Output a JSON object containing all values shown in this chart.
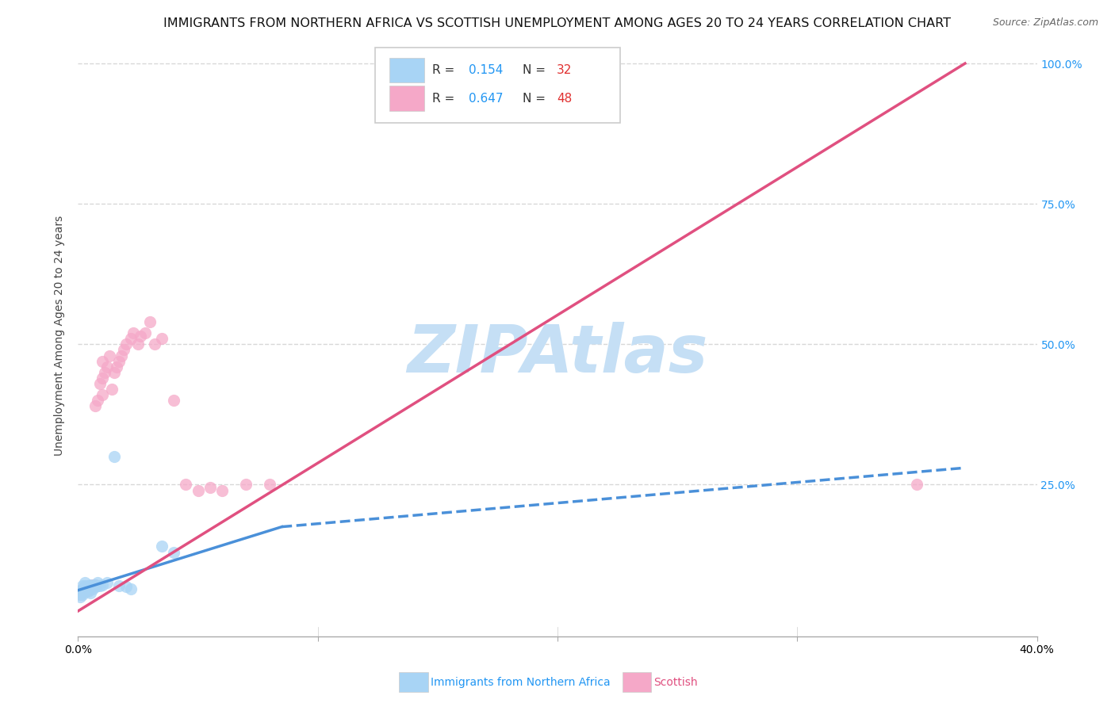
{
  "title": "IMMIGRANTS FROM NORTHERN AFRICA VS SCOTTISH UNEMPLOYMENT AMONG AGES 20 TO 24 YEARS CORRELATION CHART",
  "source": "Source: ZipAtlas.com",
  "ylabel": "Unemployment Among Ages 20 to 24 years",
  "xlabel_blue": "Immigrants from Northern Africa",
  "xlabel_pink": "Scottish",
  "legend_blue_R": "0.154",
  "legend_blue_N": "32",
  "legend_pink_R": "0.647",
  "legend_pink_N": "48",
  "watermark": "ZIPAtlas",
  "xlim": [
    0.0,
    0.4
  ],
  "ylim": [
    -0.02,
    1.05
  ],
  "xticks": [
    0.0,
    0.1,
    0.2,
    0.3,
    0.4
  ],
  "xticklabels": [
    "0.0%",
    "",
    "",
    "",
    "40.0%"
  ],
  "ytick_positions": [
    0.0,
    0.25,
    0.5,
    0.75,
    1.0
  ],
  "yticklabels_right": [
    "",
    "25.0%",
    "50.0%",
    "75.0%",
    "100.0%"
  ],
  "blue_color": "#a8d4f5",
  "blue_line_color": "#4a90d9",
  "pink_color": "#f5a8c8",
  "pink_line_color": "#e05080",
  "blue_scatter": [
    [
      0.001,
      0.05
    ],
    [
      0.001,
      0.055
    ],
    [
      0.001,
      0.06
    ],
    [
      0.002,
      0.06
    ],
    [
      0.002,
      0.065
    ],
    [
      0.002,
      0.07
    ],
    [
      0.002,
      0.055
    ],
    [
      0.003,
      0.065
    ],
    [
      0.003,
      0.06
    ],
    [
      0.003,
      0.07
    ],
    [
      0.003,
      0.075
    ],
    [
      0.004,
      0.065
    ],
    [
      0.004,
      0.06
    ],
    [
      0.004,
      0.07
    ],
    [
      0.005,
      0.068
    ],
    [
      0.005,
      0.072
    ],
    [
      0.005,
      0.058
    ],
    [
      0.006,
      0.065
    ],
    [
      0.006,
      0.07
    ],
    [
      0.007,
      0.068
    ],
    [
      0.007,
      0.072
    ],
    [
      0.008,
      0.07
    ],
    [
      0.008,
      0.075
    ],
    [
      0.009,
      0.07
    ],
    [
      0.01,
      0.072
    ],
    [
      0.012,
      0.075
    ],
    [
      0.015,
      0.3
    ],
    [
      0.017,
      0.07
    ],
    [
      0.02,
      0.068
    ],
    [
      0.022,
      0.065
    ],
    [
      0.035,
      0.14
    ],
    [
      0.04,
      0.13
    ]
  ],
  "pink_scatter": [
    [
      0.001,
      0.055
    ],
    [
      0.001,
      0.06
    ],
    [
      0.002,
      0.058
    ],
    [
      0.002,
      0.062
    ],
    [
      0.002,
      0.065
    ],
    [
      0.003,
      0.06
    ],
    [
      0.003,
      0.065
    ],
    [
      0.003,
      0.068
    ],
    [
      0.004,
      0.062
    ],
    [
      0.004,
      0.068
    ],
    [
      0.005,
      0.065
    ],
    [
      0.005,
      0.07
    ],
    [
      0.006,
      0.068
    ],
    [
      0.006,
      0.072
    ],
    [
      0.007,
      0.07
    ],
    [
      0.007,
      0.072
    ],
    [
      0.007,
      0.39
    ],
    [
      0.008,
      0.4
    ],
    [
      0.009,
      0.43
    ],
    [
      0.01,
      0.41
    ],
    [
      0.01,
      0.44
    ],
    [
      0.01,
      0.47
    ],
    [
      0.011,
      0.45
    ],
    [
      0.012,
      0.46
    ],
    [
      0.013,
      0.48
    ],
    [
      0.014,
      0.42
    ],
    [
      0.015,
      0.45
    ],
    [
      0.016,
      0.46
    ],
    [
      0.017,
      0.47
    ],
    [
      0.018,
      0.48
    ],
    [
      0.019,
      0.49
    ],
    [
      0.02,
      0.5
    ],
    [
      0.022,
      0.51
    ],
    [
      0.023,
      0.52
    ],
    [
      0.025,
      0.5
    ],
    [
      0.026,
      0.515
    ],
    [
      0.028,
      0.52
    ],
    [
      0.03,
      0.54
    ],
    [
      0.032,
      0.5
    ],
    [
      0.035,
      0.51
    ],
    [
      0.04,
      0.4
    ],
    [
      0.045,
      0.25
    ],
    [
      0.05,
      0.24
    ],
    [
      0.055,
      0.245
    ],
    [
      0.06,
      0.24
    ],
    [
      0.07,
      0.25
    ],
    [
      0.08,
      0.25
    ],
    [
      0.35,
      0.25
    ]
  ],
  "blue_trendline_solid": [
    [
      0.0,
      0.062
    ],
    [
      0.085,
      0.175
    ]
  ],
  "blue_trendline_dashed": [
    [
      0.085,
      0.175
    ],
    [
      0.37,
      0.28
    ]
  ],
  "pink_trendline": [
    [
      0.0,
      0.025
    ],
    [
      0.37,
      1.0
    ]
  ],
  "grid_color": "#d8d8d8",
  "title_fontsize": 11.5,
  "axis_label_fontsize": 10,
  "tick_fontsize": 10,
  "watermark_color": "#c5dff5",
  "watermark_fontsize": 60,
  "legend_R_color": "#2196F3",
  "legend_N_color": "#e03030",
  "legend_text_color": "#333333"
}
